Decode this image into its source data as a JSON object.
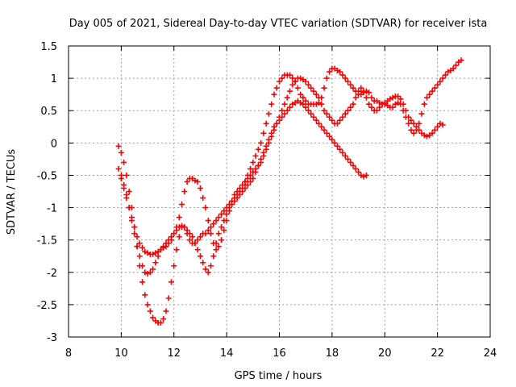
{
  "chart_data": {
    "type": "scatter",
    "title": "Day 005 of 2021, Sidereal Day-to-day VTEC variation (SDTVAR) for receiver ista",
    "xlabel": "GPS time / hours",
    "ylabel": "SDTVAR / TECUs",
    "xlim": [
      8,
      24
    ],
    "ylim": [
      -3,
      1.5
    ],
    "xticks": [
      8,
      10,
      12,
      14,
      16,
      18,
      20,
      22,
      24
    ],
    "yticks": [
      -3,
      -2.5,
      -2,
      -1.5,
      -1,
      -0.5,
      0,
      0.5,
      1,
      1.5
    ],
    "xtick_labels": [
      "8",
      "10",
      "12",
      "14",
      "16",
      "18",
      "20",
      "22",
      "24"
    ],
    "ytick_labels": [
      "-3",
      "-2.5",
      "-2",
      "-1.5",
      "-1",
      "-0.5",
      "0",
      "0.5",
      "1",
      "1.5"
    ],
    "grid": true,
    "marker": "+",
    "color": "#ff0000",
    "series": [
      {
        "x": [
          9.9,
          10.0,
          10.1,
          10.2,
          10.3,
          10.4,
          10.5,
          10.6,
          10.7,
          10.8,
          10.9,
          11.0,
          11.1,
          11.2,
          11.3,
          11.4,
          11.5,
          11.6,
          11.7,
          11.8,
          11.9,
          12.0,
          12.1,
          12.2,
          12.3,
          12.4,
          12.5,
          12.6,
          12.7,
          12.8,
          12.9,
          13.0,
          13.1,
          13.2,
          13.3,
          13.4,
          13.5,
          13.6,
          13.7,
          13.8,
          13.9,
          14.0,
          14.1,
          14.2,
          14.3,
          14.4,
          14.5,
          14.6,
          14.7,
          14.8,
          14.9,
          15.0,
          15.1,
          15.2,
          15.3,
          15.4,
          15.5,
          15.6,
          15.7,
          15.8,
          15.9,
          16.0,
          16.1,
          16.2,
          16.3,
          16.4,
          16.5,
          16.6,
          16.7,
          16.8,
          16.9,
          17.0,
          17.1,
          17.2,
          17.3,
          17.4,
          17.5,
          17.6,
          17.7,
          17.8,
          17.9,
          18.0,
          18.1,
          18.2,
          18.3,
          18.4,
          18.5,
          18.6,
          18.7,
          18.8,
          18.9,
          19.0,
          19.1,
          19.2,
          19.3,
          19.4,
          19.5,
          19.6,
          19.7,
          19.8,
          19.9,
          20.0,
          20.1,
          20.2,
          20.3,
          20.4,
          20.5,
          20.6,
          20.7,
          20.8,
          20.9,
          21.0,
          21.1,
          21.2,
          21.3,
          21.4,
          21.5,
          21.6,
          21.7,
          21.8,
          21.9,
          22.0,
          22.1,
          22.2,
          22.3,
          22.4,
          22.5,
          22.6,
          22.7,
          22.8,
          22.9
        ],
        "y": [
          -0.05,
          -0.15,
          -0.3,
          -0.5,
          -0.75,
          -1.0,
          -1.3,
          -1.6,
          -1.9,
          -2.15,
          -2.35,
          -2.5,
          -2.6,
          -2.7,
          -2.75,
          -2.78,
          -2.78,
          -2.72,
          -2.6,
          -2.4,
          -2.15,
          -1.9,
          -1.65,
          -1.45,
          -1.3,
          -1.3,
          -1.4,
          -1.5,
          -1.55,
          -1.55,
          -1.5,
          -1.45,
          -1.4,
          -1.4,
          -1.35,
          -1.3,
          -1.25,
          -1.2,
          -1.15,
          -1.1,
          -1.05,
          -1.0,
          -0.95,
          -0.9,
          -0.85,
          -0.8,
          -0.75,
          -0.7,
          -0.6,
          -0.5,
          -0.4,
          -0.3,
          -0.2,
          -0.1,
          0.0,
          0.15,
          0.3,
          0.45,
          0.6,
          0.75,
          0.85,
          0.95,
          1.0,
          1.05,
          1.05,
          1.05,
          1.0,
          0.95,
          0.85,
          0.75,
          0.7,
          0.65,
          0.6,
          0.6,
          0.6,
          0.6,
          0.62,
          0.7,
          0.85,
          1.0,
          1.1,
          1.15,
          1.15,
          1.12,
          1.1,
          1.05,
          1.0,
          0.95,
          0.9,
          0.85,
          0.8,
          0.75,
          0.75,
          0.78,
          0.8,
          0.78,
          0.7,
          0.65,
          0.65,
          0.62,
          0.6,
          0.6,
          0.58,
          0.55,
          0.55,
          0.6,
          0.62,
          0.6,
          0.5,
          0.4,
          0.3,
          0.2,
          0.15,
          0.2,
          0.3,
          0.45,
          0.6,
          0.7,
          0.75,
          0.8,
          0.85,
          0.9,
          0.95,
          1.0,
          1.05,
          1.1,
          1.12,
          1.15,
          1.2,
          1.25,
          1.28
        ]
      },
      {
        "x": [
          9.9,
          10.0,
          10.1,
          10.2,
          10.3,
          10.4,
          10.5,
          10.6,
          10.7,
          10.8,
          10.9,
          11.0,
          11.1,
          11.2,
          11.3,
          11.4,
          11.5,
          11.6,
          11.7,
          11.8,
          11.9,
          12.0,
          12.1,
          12.2,
          12.3,
          12.4,
          12.5,
          12.6,
          12.7,
          12.8,
          12.9,
          13.0,
          13.1,
          13.2,
          13.3,
          13.4,
          13.5,
          13.6,
          13.7,
          13.8,
          13.9,
          14.0,
          14.1,
          14.2,
          14.3,
          14.4,
          14.5,
          14.6,
          14.7,
          14.8,
          14.9,
          15.0,
          15.1,
          15.2,
          15.3,
          15.4,
          15.5,
          15.6,
          15.7,
          15.8,
          15.9,
          16.0,
          16.1,
          16.2,
          16.3,
          16.4,
          16.5,
          16.6,
          16.7,
          16.8,
          16.9,
          17.0,
          17.1,
          17.2,
          17.3,
          17.4,
          17.5,
          17.6,
          17.7,
          17.8,
          17.9,
          18.0,
          18.1,
          18.2,
          18.3,
          18.4,
          18.5,
          18.6,
          18.7,
          18.8,
          18.9,
          19.0,
          19.1,
          19.2,
          19.3
        ],
        "y": [
          -0.4,
          -0.5,
          -0.65,
          -0.8,
          -1.0,
          -1.2,
          -1.4,
          -1.6,
          -1.75,
          -1.9,
          -2.0,
          -2.02,
          -2.0,
          -1.95,
          -1.85,
          -1.75,
          -1.65,
          -1.6,
          -1.55,
          -1.5,
          -1.45,
          -1.4,
          -1.35,
          -1.3,
          -1.28,
          -1.3,
          -1.35,
          -1.4,
          -1.45,
          -1.55,
          -1.65,
          -1.75,
          -1.85,
          -1.95,
          -2.0,
          -1.9,
          -1.75,
          -1.55,
          -1.4,
          -1.3,
          -1.2,
          -1.1,
          -1.0,
          -0.95,
          -0.9,
          -0.85,
          -0.8,
          -0.75,
          -0.7,
          -0.65,
          -0.6,
          -0.55,
          -0.45,
          -0.35,
          -0.25,
          -0.15,
          -0.05,
          0.05,
          0.15,
          0.25,
          0.3,
          0.35,
          0.4,
          0.45,
          0.5,
          0.55,
          0.6,
          0.62,
          0.65,
          0.62,
          0.6,
          0.55,
          0.5,
          0.45,
          0.4,
          0.35,
          0.3,
          0.25,
          0.2,
          0.15,
          0.1,
          0.05,
          0.0,
          -0.05,
          -0.1,
          -0.15,
          -0.2,
          -0.25,
          -0.3,
          -0.35,
          -0.4,
          -0.45,
          -0.5,
          -0.52,
          -0.5
        ]
      },
      {
        "x": [
          10.0,
          10.1,
          10.2,
          10.3,
          10.4,
          10.5,
          10.6,
          10.7,
          10.8,
          10.9,
          11.0,
          11.1,
          11.2,
          11.3,
          11.4,
          11.5,
          11.6,
          11.7,
          11.8,
          11.9,
          12.0,
          12.1,
          12.2,
          12.3,
          12.4,
          12.5,
          12.6,
          12.7,
          12.8,
          12.9,
          13.0,
          13.1,
          13.2,
          13.3,
          13.4,
          13.5,
          13.6,
          13.7,
          13.8,
          13.9,
          14.0,
          14.1,
          14.2,
          14.3,
          14.4,
          14.5,
          14.6,
          14.7,
          14.8,
          14.9,
          15.0,
          15.1,
          15.2,
          15.3,
          15.4,
          15.5,
          15.6,
          15.7,
          15.8,
          15.9,
          16.0,
          16.1,
          16.2,
          16.3,
          16.4,
          16.5,
          16.6,
          16.7,
          16.8,
          16.9,
          17.0,
          17.1,
          17.2,
          17.3,
          17.4,
          17.5,
          17.6,
          17.7,
          17.8,
          17.9,
          18.0,
          18.1,
          18.2,
          18.3,
          18.4,
          18.5,
          18.6,
          18.7,
          18.8,
          18.9,
          19.0,
          19.1,
          19.2,
          19.3,
          19.4,
          19.5,
          19.6,
          19.7,
          19.8,
          19.9,
          20.0,
          20.1,
          20.2,
          20.3,
          20.4,
          20.5,
          20.6,
          20.7,
          20.8,
          20.9,
          21.0,
          21.1,
          21.2,
          21.3,
          21.4,
          21.5,
          21.6,
          21.7,
          21.8,
          21.9,
          22.0,
          22.1,
          22.2
        ],
        "y": [
          -0.55,
          -0.7,
          -0.85,
          -1.0,
          -1.15,
          -1.3,
          -1.45,
          -1.55,
          -1.62,
          -1.68,
          -1.7,
          -1.72,
          -1.72,
          -1.7,
          -1.68,
          -1.65,
          -1.62,
          -1.6,
          -1.55,
          -1.5,
          -1.4,
          -1.3,
          -1.15,
          -0.95,
          -0.75,
          -0.6,
          -0.55,
          -0.55,
          -0.58,
          -0.6,
          -0.7,
          -0.85,
          -1.0,
          -1.2,
          -1.4,
          -1.55,
          -1.65,
          -1.6,
          -1.5,
          -1.35,
          -1.2,
          -1.05,
          -0.9,
          -0.8,
          -0.75,
          -0.7,
          -0.65,
          -0.6,
          -0.55,
          -0.5,
          -0.45,
          -0.4,
          -0.35,
          -0.3,
          -0.2,
          -0.1,
          0.0,
          0.1,
          0.2,
          0.3,
          0.4,
          0.5,
          0.6,
          0.7,
          0.8,
          0.9,
          0.95,
          1.0,
          1.0,
          0.98,
          0.95,
          0.9,
          0.85,
          0.8,
          0.75,
          0.7,
          0.6,
          0.5,
          0.45,
          0.4,
          0.35,
          0.3,
          0.3,
          0.35,
          0.4,
          0.45,
          0.5,
          0.55,
          0.6,
          0.7,
          0.8,
          0.85,
          0.8,
          0.7,
          0.6,
          0.55,
          0.5,
          0.5,
          0.55,
          0.6,
          0.62,
          0.65,
          0.68,
          0.7,
          0.72,
          0.72,
          0.68,
          0.6,
          0.5,
          0.4,
          0.35,
          0.3,
          0.25,
          0.2,
          0.15,
          0.12,
          0.1,
          0.12,
          0.15,
          0.2,
          0.25,
          0.3,
          0.28
        ]
      }
    ]
  }
}
